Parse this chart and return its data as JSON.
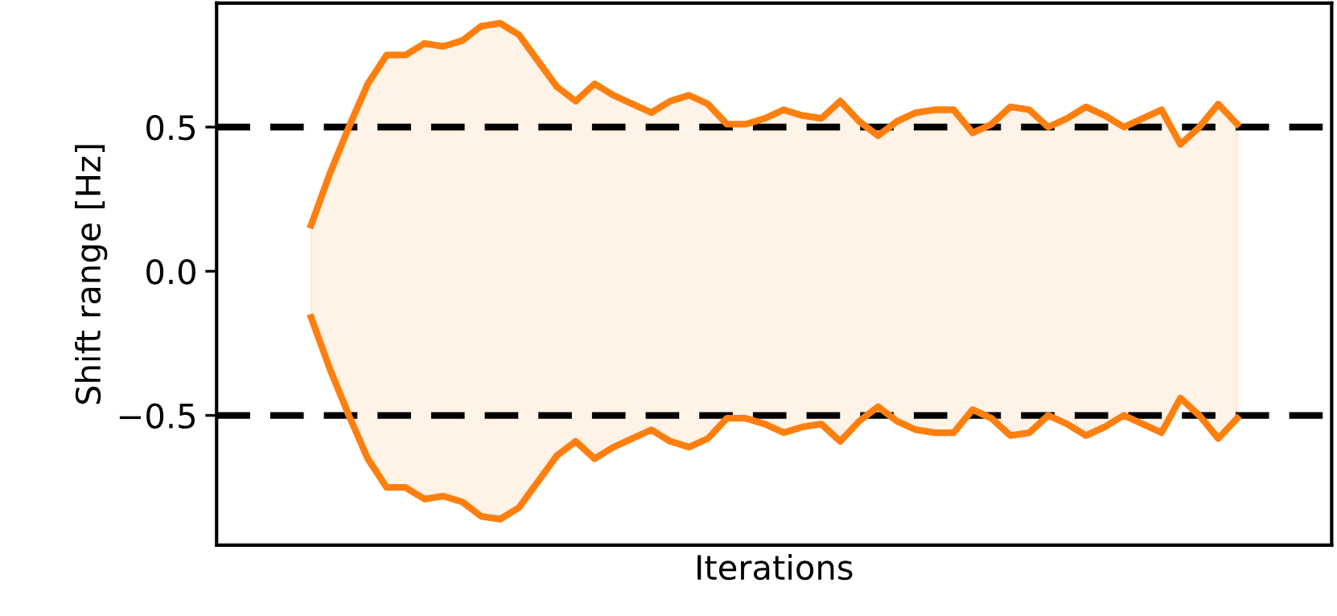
{
  "chart_data": {
    "type": "line",
    "xlabel": "Iterations",
    "ylabel": "Shift range [Hz]",
    "categories": [
      null,
      null,
      null,
      null,
      null,
      null,
      null,
      null,
      null,
      null,
      null,
      null,
      null,
      null,
      null,
      null,
      null,
      null,
      null,
      null,
      null,
      null,
      null,
      null,
      null,
      null,
      null,
      null,
      null,
      null,
      null,
      null,
      null,
      null,
      null,
      null,
      null,
      null,
      null,
      null,
      null,
      null,
      null,
      null,
      null,
      null,
      null,
      null,
      null,
      null
    ],
    "series": [
      {
        "color": "#ff7f0e",
        "values": [
          0.16,
          0.34,
          0.5,
          0.65,
          0.75,
          0.75,
          0.79,
          0.78,
          0.8,
          0.85,
          0.86,
          0.82,
          0.73,
          0.64,
          0.59,
          0.65,
          0.61,
          0.58,
          0.55,
          0.59,
          0.61,
          0.58,
          0.51,
          0.51,
          0.53,
          0.56,
          0.54,
          0.53,
          0.59,
          0.52,
          0.47,
          0.52,
          0.55,
          0.56,
          0.56,
          0.48,
          0.51,
          0.57,
          0.56,
          0.5,
          0.53,
          0.57,
          0.54,
          0.5,
          0.53,
          0.56,
          0.44,
          0.5,
          0.58,
          0.51
        ],
        "upper": [
          0.16,
          0.34,
          0.5,
          0.65,
          0.75,
          0.75,
          0.79,
          0.78,
          0.8,
          0.85,
          0.86,
          0.82,
          0.73,
          0.64,
          0.59,
          0.65,
          0.61,
          0.58,
          0.55,
          0.59,
          0.61,
          0.58,
          0.51,
          0.51,
          0.53,
          0.56,
          0.54,
          0.53,
          0.59,
          0.52,
          0.47,
          0.52,
          0.55,
          0.56,
          0.56,
          0.48,
          0.51,
          0.57,
          0.56,
          0.5,
          0.53,
          0.57,
          0.54,
          0.5,
          0.53,
          0.56,
          0.44,
          0.5,
          0.58,
          0.51
        ],
        "lower": [
          -0.16,
          -0.34,
          -0.5,
          -0.65,
          -0.75,
          -0.75,
          -0.79,
          -0.78,
          -0.8,
          -0.85,
          -0.86,
          -0.82,
          -0.73,
          -0.64,
          -0.59,
          -0.65,
          -0.61,
          -0.58,
          -0.55,
          -0.59,
          -0.61,
          -0.58,
          -0.51,
          -0.51,
          -0.53,
          -0.56,
          -0.54,
          -0.53,
          -0.59,
          -0.52,
          -0.47,
          -0.52,
          -0.55,
          -0.56,
          -0.56,
          -0.48,
          -0.51,
          -0.57,
          -0.56,
          -0.5,
          -0.53,
          -0.57,
          -0.54,
          -0.5,
          -0.53,
          -0.56,
          -0.44,
          -0.5,
          -0.58,
          -0.51
        ]
      },
      {
        "color": "#ff7f0e",
        "values": [
          -0.16,
          -0.34,
          -0.5,
          -0.65,
          -0.75,
          -0.75,
          -0.79,
          -0.78,
          -0.8,
          -0.85,
          -0.86,
          -0.82,
          -0.73,
          -0.64,
          -0.59,
          -0.65,
          -0.61,
          -0.58,
          -0.55,
          -0.59,
          -0.61,
          -0.58,
          -0.51,
          -0.51,
          -0.53,
          -0.56,
          -0.54,
          -0.53,
          -0.59,
          -0.52,
          -0.47,
          -0.52,
          -0.55,
          -0.56,
          -0.56,
          -0.48,
          -0.51,
          -0.57,
          -0.56,
          -0.5,
          -0.53,
          -0.57,
          -0.54,
          -0.5,
          -0.53,
          -0.56,
          -0.44,
          -0.5,
          -0.58,
          -0.51
        ]
      }
    ],
    "ref_lines": [
      {
        "axis": "y",
        "value": 0.5,
        "color": "#000000",
        "line_style": "dashed"
      },
      {
        "axis": "y",
        "value": -0.5,
        "color": "#000000",
        "line_style": "dashed"
      }
    ],
    "ylim": [
      -0.95,
      0.93
    ],
    "yticks": [
      {
        "value": -0.5,
        "label": "−0.5"
      },
      {
        "value": 0.0,
        "label": "0.0"
      },
      {
        "value": 0.5,
        "label": "0.5"
      }
    ],
    "tick_labels": "y",
    "grid": false,
    "marker": "none",
    "line_style": "solid"
  }
}
